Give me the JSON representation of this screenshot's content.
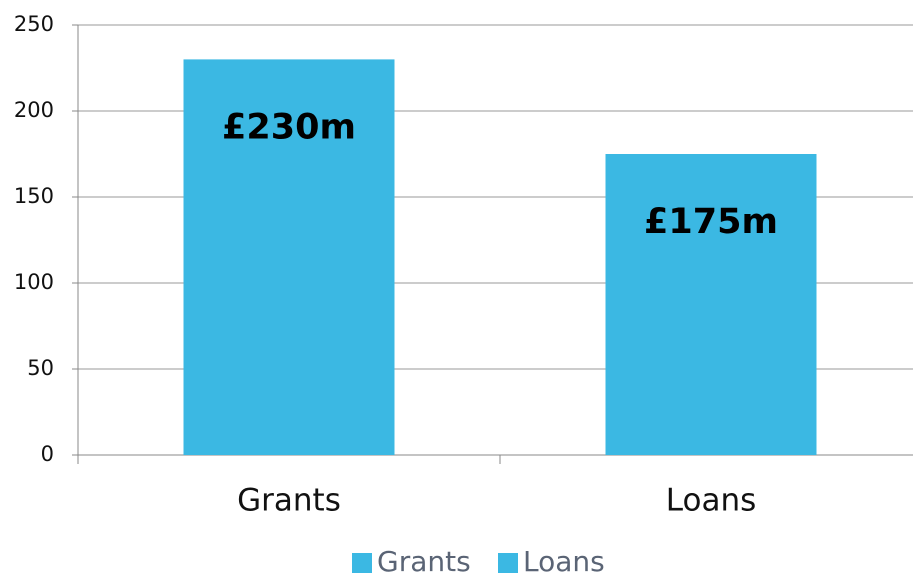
{
  "chart_data": {
    "type": "bar",
    "categories": [
      "Grants",
      "Loans"
    ],
    "values": [
      230,
      175
    ],
    "value_labels": [
      "£230m",
      "£175m"
    ],
    "color": "#3bb8e3",
    "ylim": [
      0,
      250
    ],
    "yticks": [
      0,
      50,
      100,
      150,
      200,
      250
    ],
    "grid": true,
    "legend": "bottom"
  }
}
